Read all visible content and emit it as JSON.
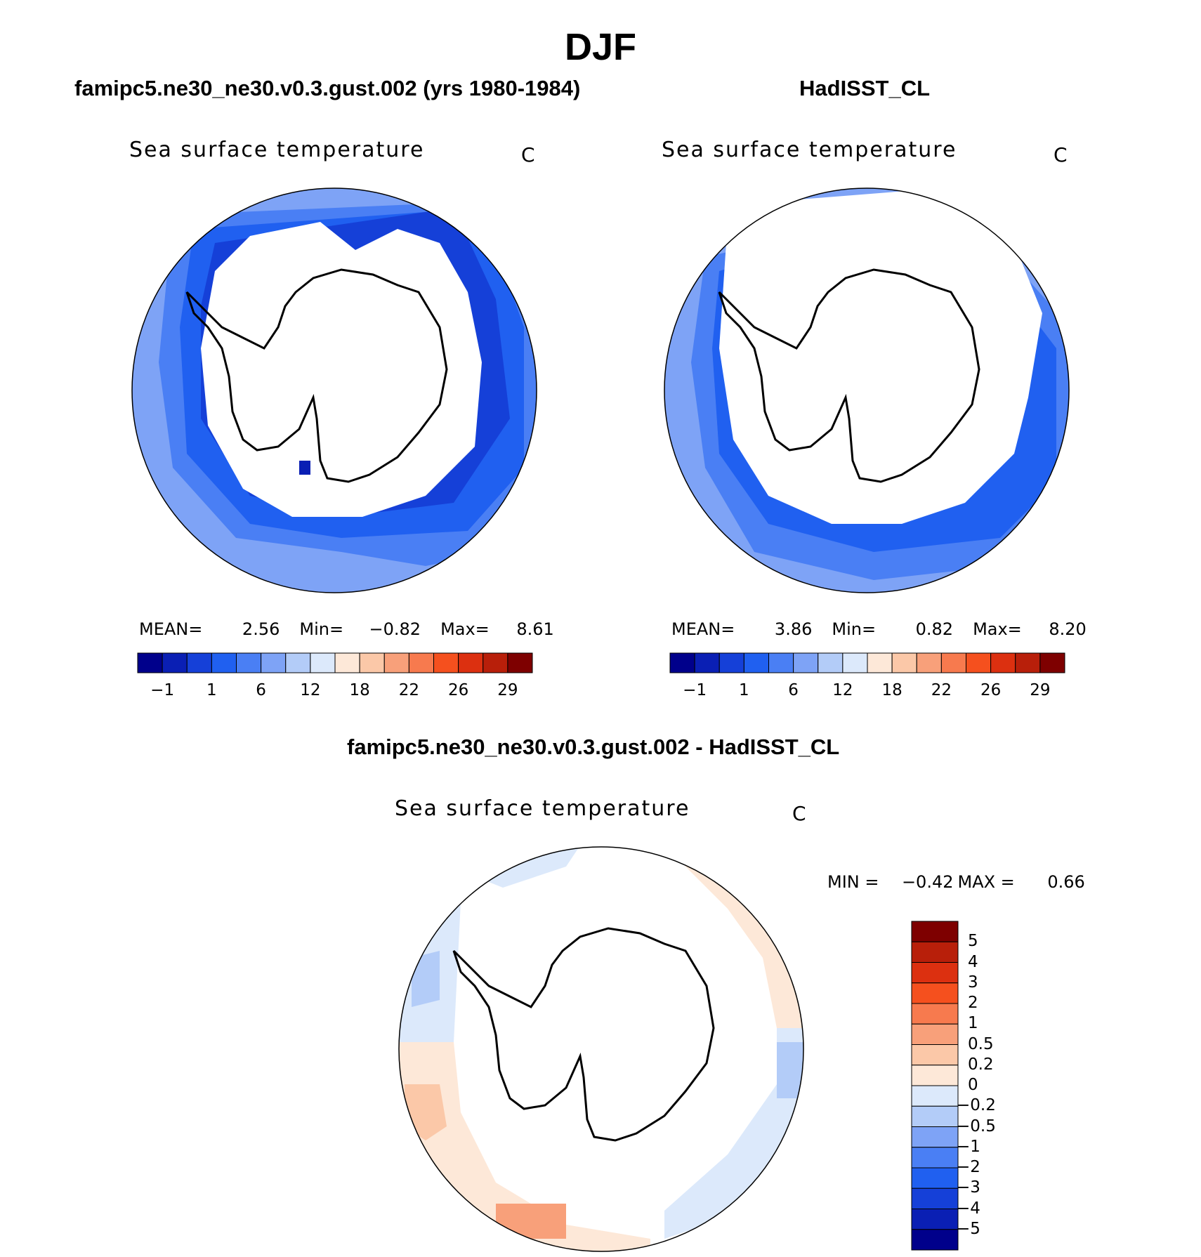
{
  "figure": {
    "title": "DJF"
  },
  "panels": [
    {
      "id": "model",
      "header": "famipc5.ne30_ne30.v0.3.gust.002 (yrs 1980-1984)",
      "title": "Sea surface temperature",
      "units": "C",
      "stats": {
        "mean_label": "MEAN=",
        "mean": "2.56",
        "min_label": "Min=",
        "min": "−0.82",
        "max_label": "Max=",
        "max": "8.61"
      }
    },
    {
      "id": "obs",
      "header": "HadISST_CL",
      "title": "Sea surface temperature",
      "units": "C",
      "stats": {
        "mean_label": "MEAN=",
        "mean": "3.86",
        "min_label": "Min=",
        "min": "0.82",
        "max_label": "Max=",
        "max": "8.20"
      }
    },
    {
      "id": "diff",
      "header": "famipc5.ne30_ne30.v0.3.gust.002 - HadISST_CL",
      "title": "Sea surface temperature",
      "units": "C",
      "stats": {
        "min_label": "MIN =",
        "min": "−0.42",
        "max_label": "MAX =",
        "max": "0.66"
      }
    }
  ],
  "colorbar_field": {
    "colors": [
      "#00008b",
      "#0a1fb4",
      "#1540d8",
      "#2060f0",
      "#4a7ff4",
      "#7ea3f6",
      "#b3ccf8",
      "#dce9fb",
      "#fde8d8",
      "#fbc8a8",
      "#f8a07a",
      "#f77a4e",
      "#f5501e",
      "#dc3010",
      "#b81f0a",
      "#7e0000"
    ],
    "tick_labels": [
      "−1",
      "1",
      "6",
      "12",
      "18",
      "22",
      "26",
      "29"
    ]
  },
  "colorbar_diff": {
    "colors": [
      "#7e0000",
      "#b81f0a",
      "#dc3010",
      "#f5501e",
      "#f77a4e",
      "#f8a07a",
      "#fbc8a8",
      "#fde8d8",
      "#dce9fb",
      "#b3ccf8",
      "#7ea3f6",
      "#4a7ff4",
      "#2060f0",
      "#1540d8",
      "#0a1fb4",
      "#00008b"
    ],
    "tick_labels": [
      "5",
      "4",
      "3",
      "2",
      "1",
      "0.5",
      "0.2",
      "0",
      "−0.2",
      "−0.5",
      "−1",
      "−2",
      "−3",
      "−4",
      "−5"
    ]
  }
}
